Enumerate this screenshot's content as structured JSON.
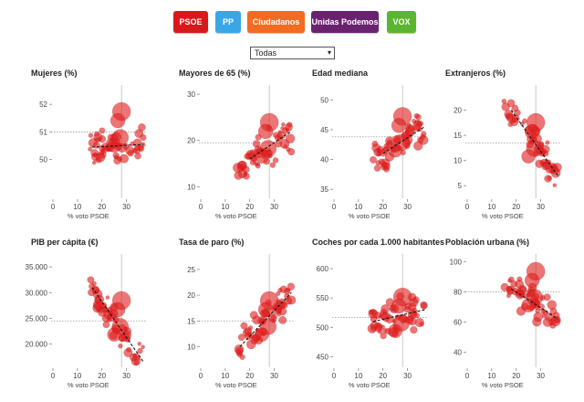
{
  "parties": [
    {
      "label": "PSOE",
      "color": "#d7191c"
    },
    {
      "label": "PP",
      "color": "#3aa6e8"
    },
    {
      "label": "Ciudadanos",
      "color": "#f26b21"
    },
    {
      "label": "Unidas Podemos",
      "color": "#6a2270"
    },
    {
      "label": "VOX",
      "color": "#5bb530"
    }
  ],
  "filter": {
    "selected": "Todas"
  },
  "point_color": "#e02020",
  "chart_data": [
    {
      "type": "scatter",
      "title": "Mujeres (%)",
      "xlabel": "% voto PSOE",
      "xlim": [
        0,
        38
      ],
      "xticks": [
        0,
        10,
        20,
        30
      ],
      "ylim": [
        48.6,
        52.7
      ],
      "yticks": [
        50,
        51,
        52
      ],
      "mean_y": 51.0,
      "mean_x": 28,
      "trend": [
        [
          16,
          50.45
        ],
        [
          37,
          50.55
        ]
      ]
    },
    {
      "type": "scatter",
      "title": "Mayores de 65 (%)",
      "xlabel": "% voto PSOE",
      "xlim": [
        0,
        38
      ],
      "xticks": [
        0,
        10,
        20,
        30
      ],
      "ylim": [
        7.5,
        32
      ],
      "yticks": [
        10,
        20,
        30
      ],
      "mean_y": 19.5,
      "mean_x": 28,
      "trend": [
        [
          20,
          16
        ],
        [
          37,
          22
        ]
      ]
    },
    {
      "type": "scatter",
      "title": "Edad mediana",
      "xlabel": "% voto PSOE",
      "xlim": [
        0,
        38
      ],
      "xticks": [
        0,
        10,
        20,
        30
      ],
      "ylim": [
        33.5,
        52.5
      ],
      "yticks": [
        35,
        40,
        45,
        50
      ],
      "mean_y": 43.8,
      "mean_x": 28,
      "trend": [
        [
          20,
          41
        ],
        [
          37,
          45.5
        ]
      ]
    },
    {
      "type": "scatter",
      "title": "Extranjeros (%)",
      "xlabel": "% voto PSOE",
      "xlim": [
        0,
        38
      ],
      "xticks": [
        0,
        10,
        20,
        30
      ],
      "ylim": [
        2.5,
        25
      ],
      "yticks": [
        5,
        10,
        15,
        20
      ],
      "mean_y": 13.5,
      "mean_x": 28,
      "trend": [
        [
          18,
          20
        ],
        [
          37,
          7
        ]
      ]
    },
    {
      "type": "scatter",
      "title": "PIB per cápita (€)",
      "xlabel": "% voto PSOE",
      "xlim": [
        0,
        38
      ],
      "xticks": [
        0,
        10,
        20,
        30
      ],
      "ylim": [
        15500,
        37500
      ],
      "yticks": [
        20000,
        25000,
        30000,
        35000
      ],
      "ytick_labels": [
        "20.000",
        "25.000",
        "30.000",
        "35.000"
      ],
      "mean_y": 24500,
      "mean_x": 28,
      "trend": [
        [
          16,
          31000
        ],
        [
          37,
          16500
        ]
      ]
    },
    {
      "type": "scatter",
      "title": "Tasa de paro (%)",
      "xlabel": "% voto PSOE",
      "xlim": [
        0,
        38
      ],
      "xticks": [
        0,
        10,
        20,
        30
      ],
      "ylim": [
        6,
        28
      ],
      "yticks": [
        10,
        15,
        20,
        25
      ],
      "mean_y": 15.0,
      "mean_x": 28,
      "trend": [
        [
          16,
          10
        ],
        [
          37,
          20.5
        ]
      ]
    },
    {
      "type": "scatter",
      "title": "Coches por cada 1.000 habitantes",
      "xlabel": "% voto PSOE",
      "xlim": [
        0,
        38
      ],
      "xticks": [
        0,
        10,
        20,
        30
      ],
      "ylim": [
        432,
        625
      ],
      "yticks": [
        450,
        500,
        550,
        600
      ],
      "mean_y": 517,
      "mean_x": 28,
      "trend": [
        [
          16,
          510
        ],
        [
          37,
          530
        ]
      ]
    },
    {
      "type": "scatter",
      "title": "Población urbana (%)",
      "xlabel": "% voto PSOE",
      "xlim": [
        0,
        38
      ],
      "xticks": [
        0,
        10,
        20,
        30
      ],
      "ylim": [
        30,
        105
      ],
      "yticks": [
        40,
        60,
        80,
        100
      ],
      "mean_y": 80,
      "mean_x": 28,
      "trend": [
        [
          18,
          82
        ],
        [
          37,
          62
        ]
      ]
    }
  ]
}
